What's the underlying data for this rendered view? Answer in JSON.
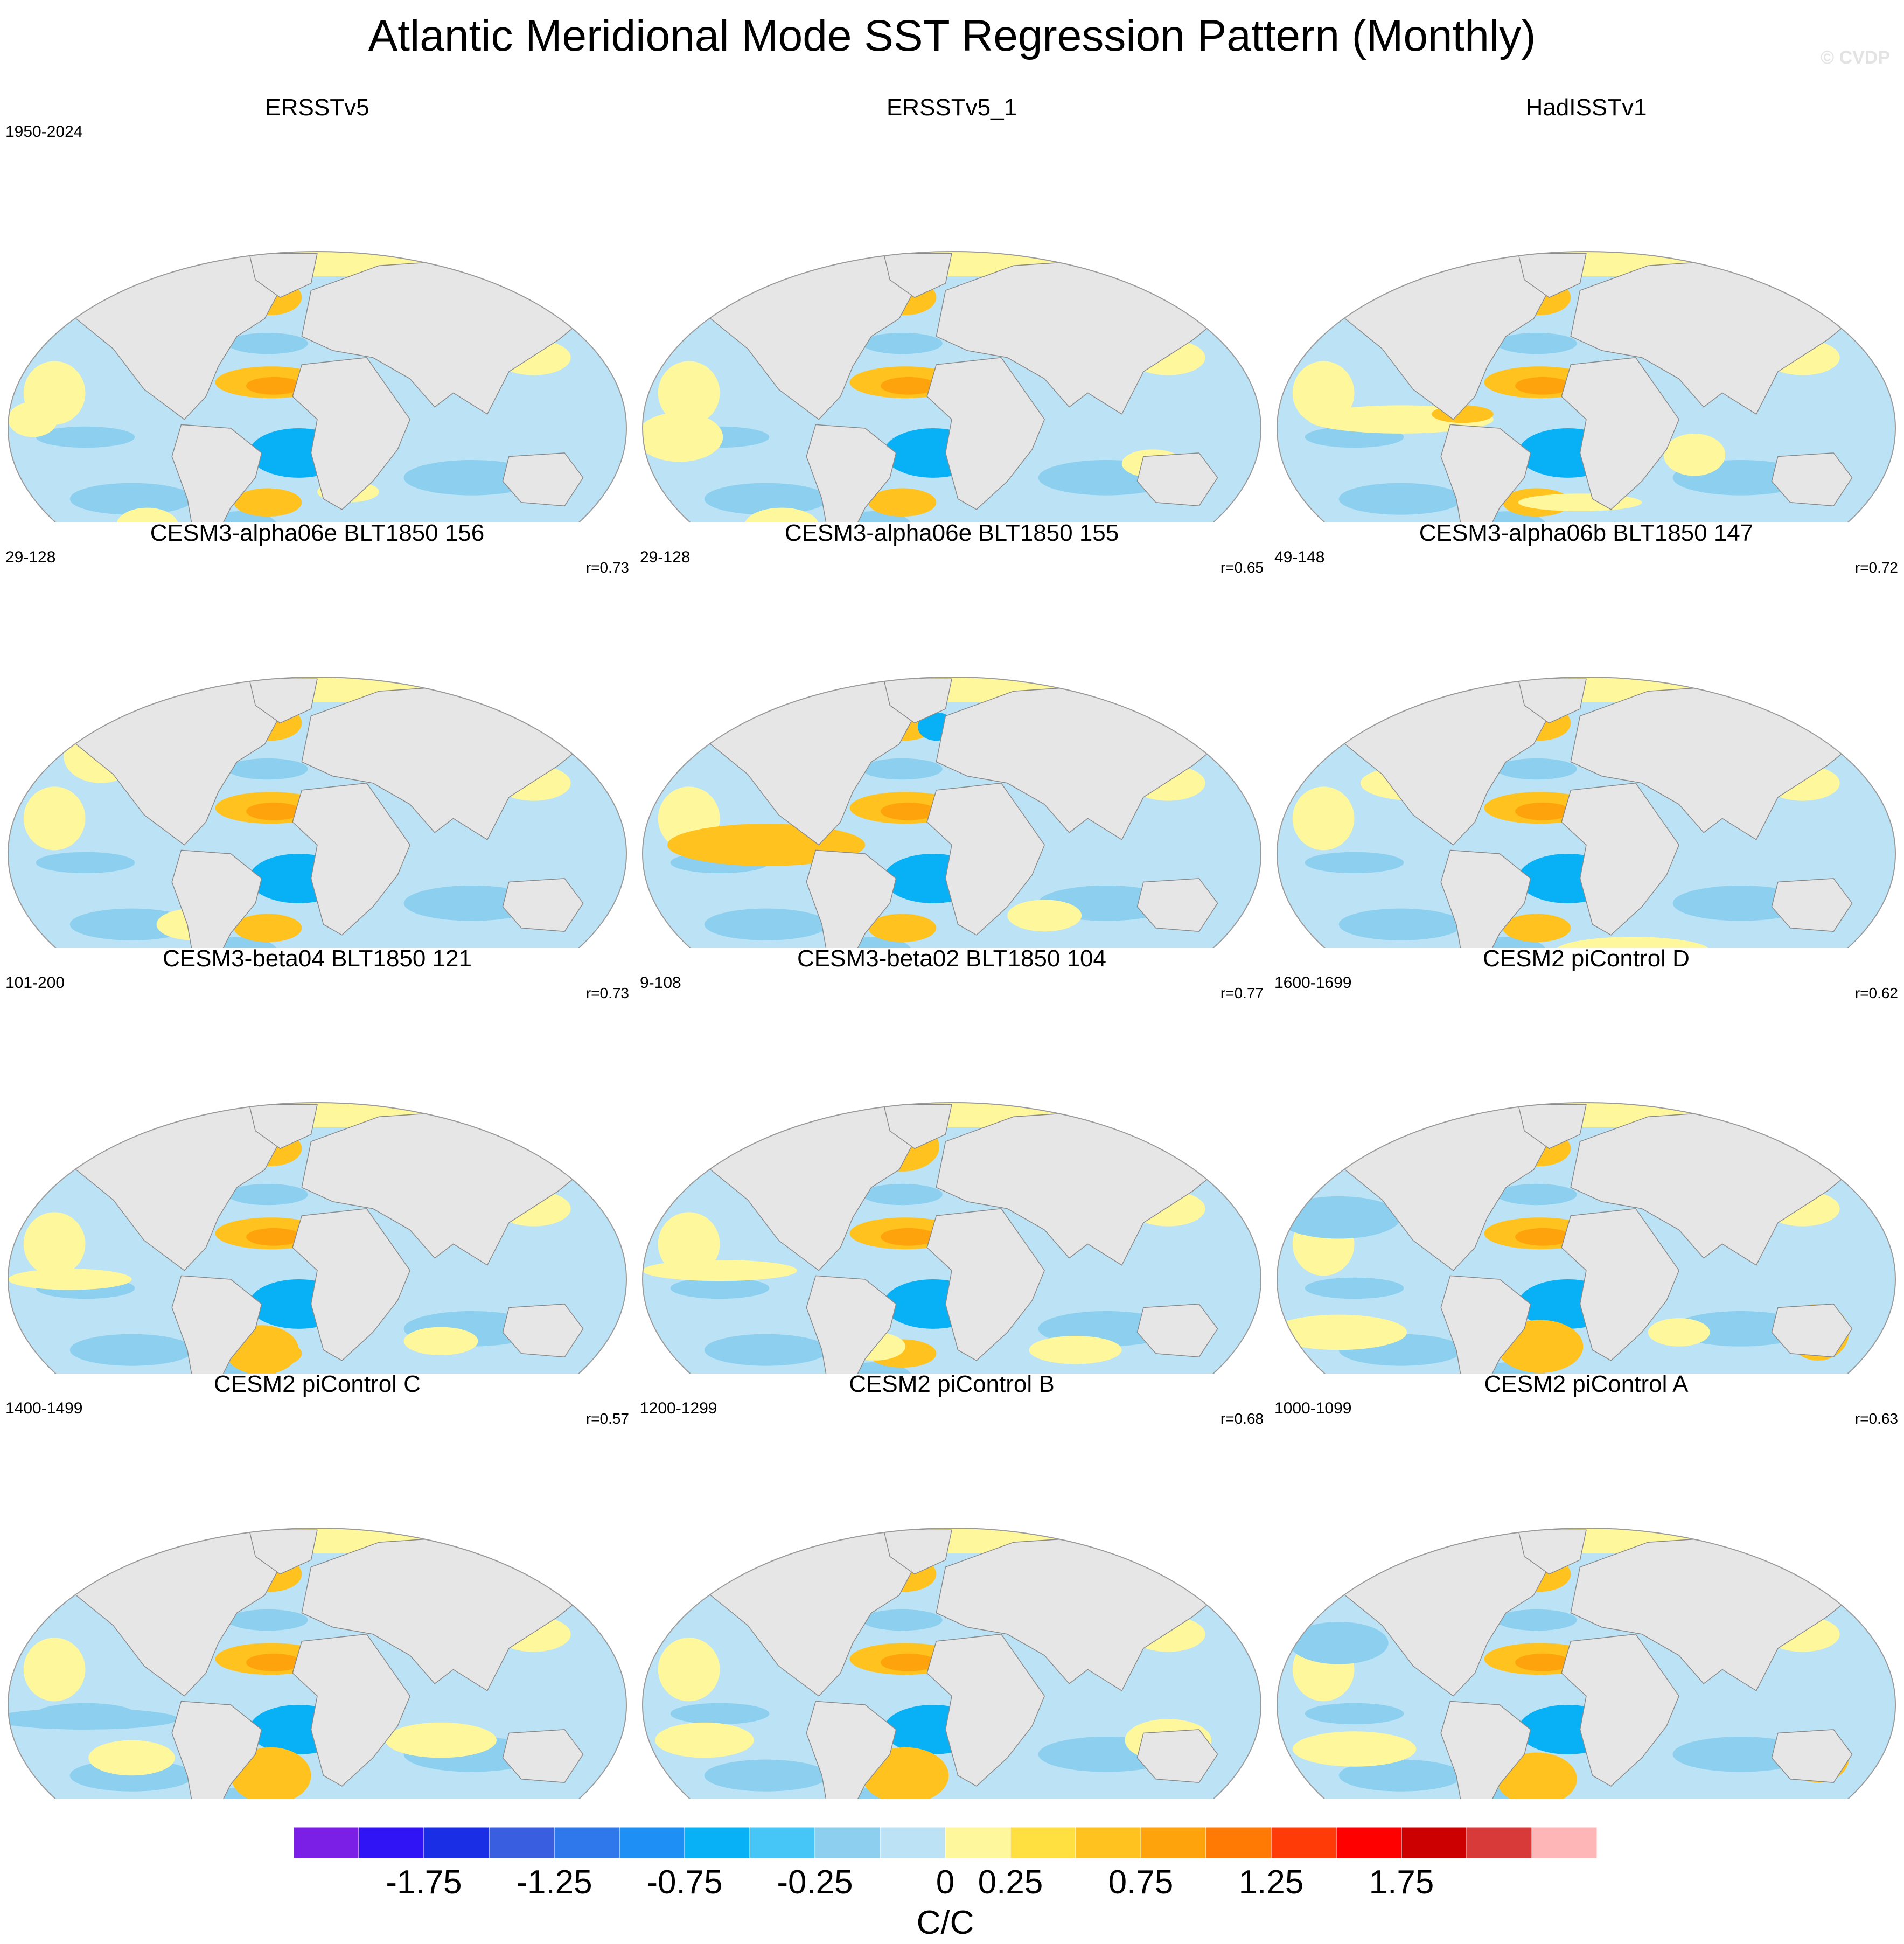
{
  "figure": {
    "title": "Atlantic Meridional Mode SST Regression Pattern (Monthly)",
    "watermark": "© CVDP"
  },
  "chart_data": {
    "type": "heatmap",
    "title": "Atlantic Meridional Mode SST Regression Pattern (Monthly)",
    "colorbar": {
      "label": "C/C",
      "levels": [
        -2.0,
        -1.75,
        -1.5,
        -1.25,
        -1.0,
        -0.75,
        -0.5,
        -0.25,
        0,
        0.25,
        0.5,
        0.75,
        1.0,
        1.25,
        1.5,
        1.75,
        2.0
      ],
      "tick_labels": [
        "-1.75",
        "-1.25",
        "-0.75",
        "-0.25",
        "0",
        "0.25",
        "0.75",
        "1.25",
        "1.75"
      ],
      "colors": [
        "#7b1fe6",
        "#3014f5",
        "#1a2ee6",
        "#3a5ee0",
        "#2e78ec",
        "#1e90f5",
        "#08b0f5",
        "#45c6f7",
        "#8ccfee",
        "#bce2f5",
        "#fff79c",
        "#ffe040",
        "#ffc21e",
        "#ffa30c",
        "#ff7a05",
        "#ff3c08",
        "#ff0000",
        "#cc0000",
        "#d83a3a",
        "#ffb6b6"
      ]
    },
    "panels": [
      {
        "title": "ERSSTv5",
        "years": "1950-2024",
        "r": ""
      },
      {
        "title": "ERSSTv5_1",
        "years": "",
        "r": ""
      },
      {
        "title": "HadISSTv1",
        "years": "",
        "r": ""
      },
      {
        "title": "CESM3-alpha06e BLT1850 156",
        "years": "29-128",
        "r": "r=0.73"
      },
      {
        "title": "CESM3-alpha06e BLT1850 155",
        "years": "29-128",
        "r": "r=0.65"
      },
      {
        "title": "CESM3-alpha06b BLT1850 147",
        "years": "49-148",
        "r": "r=0.72"
      },
      {
        "title": "CESM3-beta04 BLT1850 121",
        "years": "101-200",
        "r": "r=0.73"
      },
      {
        "title": "CESM3-beta02 BLT1850 104",
        "years": "9-108",
        "r": "r=0.77"
      },
      {
        "title": "CESM2 piControl D",
        "years": "1600-1699",
        "r": "r=0.62"
      },
      {
        "title": "CESM2 piControl C",
        "years": "1400-1499",
        "r": "r=0.57"
      },
      {
        "title": "CESM2 piControl B",
        "years": "1200-1299",
        "r": "r=0.68"
      },
      {
        "title": "CESM2 piControl A",
        "years": "1000-1099",
        "r": "r=0.63"
      }
    ]
  }
}
